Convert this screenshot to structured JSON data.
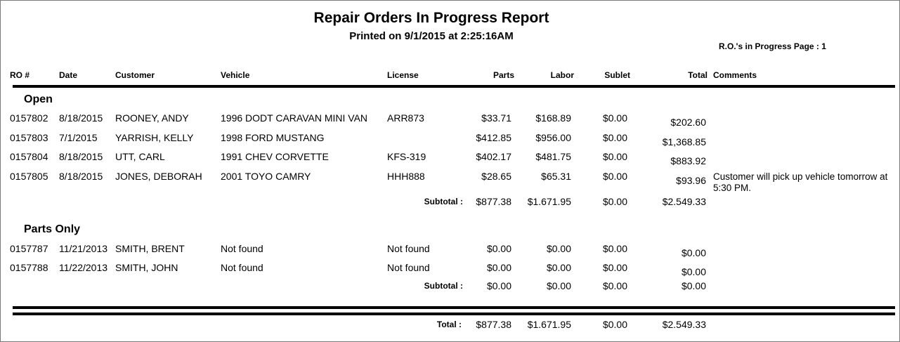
{
  "report": {
    "title": "Repair Orders In Progress Report",
    "printed": "Printed on 9/1/2015 at  2:25:16AM",
    "page_info": "R.O.'s in Progress Page : 1"
  },
  "columns": {
    "ro": "RO #",
    "date": "Date",
    "customer": "Customer",
    "vehicle": "Vehicle",
    "license": "License",
    "parts": "Parts",
    "labor": "Labor",
    "sublet": "Sublet",
    "total": "Total",
    "comments": "Comments"
  },
  "sections": [
    {
      "name": "Open",
      "rows": [
        {
          "ro": "0157802",
          "date": "8/18/2015",
          "customer": "ROONEY,  ANDY",
          "vehicle": "1996 DODT CARAVAN MINI VAN",
          "license": "ARR873",
          "parts": "$33.71",
          "labor": "$168.89",
          "sublet": "$0.00",
          "total": "$202.60",
          "comments": ""
        },
        {
          "ro": "0157803",
          "date": "7/1/2015",
          "customer": "YARRISH, KELLY",
          "vehicle": "1998 FORD MUSTANG",
          "license": "",
          "parts": "$412.85",
          "labor": "$956.00",
          "sublet": "$0.00",
          "total": "$1,368.85",
          "comments": ""
        },
        {
          "ro": "0157804",
          "date": "8/18/2015",
          "customer": "UTT, CARL",
          "vehicle": "1991 CHEV CORVETTE",
          "license": "KFS-319",
          "parts": "$402.17",
          "labor": "$481.75",
          "sublet": "$0.00",
          "total": "$883.92",
          "comments": ""
        },
        {
          "ro": "0157805",
          "date": "8/18/2015",
          "customer": "JONES, DEBORAH",
          "vehicle": "2001 TOYO CAMRY",
          "license": "HHH888",
          "parts": "$28.65",
          "labor": "$65.31",
          "sublet": "$0.00",
          "total": "$93.96",
          "comments": "Customer will pick up vehicle tomorrow at 5:30 PM."
        }
      ],
      "subtotal": {
        "label": "Subtotal :",
        "parts": "$877.38",
        "labor": "$1.671.95",
        "sublet": "$0.00",
        "total": "$2.549.33"
      }
    },
    {
      "name": "Parts Only",
      "rows": [
        {
          "ro": "0157787",
          "date": "11/21/2013",
          "customer": "SMITH, BRENT",
          "vehicle": "Not found",
          "license": "Not found",
          "parts": "$0.00",
          "labor": "$0.00",
          "sublet": "$0.00",
          "total": "$0.00",
          "comments": ""
        },
        {
          "ro": "0157788",
          "date": "11/22/2013",
          "customer": "SMITH, JOHN",
          "vehicle": "Not found",
          "license": "Not found",
          "parts": "$0.00",
          "labor": "$0.00",
          "sublet": "$0.00",
          "total": "$0.00",
          "comments": ""
        }
      ],
      "subtotal": {
        "label": "Subtotal :",
        "parts": "$0.00",
        "labor": "$0.00",
        "sublet": "$0.00",
        "total": "$0.00"
      }
    }
  ],
  "grand_total": {
    "label": "Total :",
    "parts": "$877.38",
    "labor": "$1.671.95",
    "sublet": "$0.00",
    "total": "$2.549.33"
  }
}
